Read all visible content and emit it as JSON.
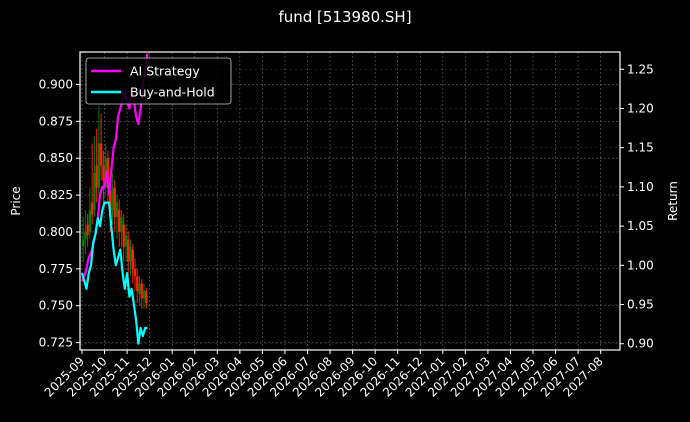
{
  "chart_data": {
    "type": "line",
    "title": "fund [513980.SH]",
    "xlabel": "",
    "ylabel_left": "Price",
    "ylabel_right": "Return",
    "ylim_left": [
      0.72,
      0.922
    ],
    "ylim_right": [
      0.892,
      1.272
    ],
    "left_ticks": [
      "0.725",
      "0.750",
      "0.775",
      "0.800",
      "0.825",
      "0.850",
      "0.875",
      "0.900"
    ],
    "right_ticks": [
      "0.90",
      "0.95",
      "1.00",
      "1.05",
      "1.10",
      "1.15",
      "1.20",
      "1.25"
    ],
    "x_tick_labels": [
      "2025-09",
      "2025-10",
      "2025-11",
      "2025-12",
      "2026-01",
      "2026-02",
      "2026-03",
      "2026-04",
      "2026-05",
      "2026-06",
      "2026-07",
      "2026-08",
      "2026-09",
      "2026-10",
      "2026-11",
      "2026-12",
      "2027-01",
      "2027-02",
      "2027-03",
      "2027-04",
      "2027-05",
      "2027-06",
      "2027-07",
      "2027-08"
    ],
    "grid": true,
    "legend_position": "upper left",
    "series": [
      {
        "name": "AI Strategy",
        "color": "#ff00ff",
        "axis": "right",
        "points": [
          [
            0.0,
            0.98
          ],
          [
            0.15,
            0.99
          ],
          [
            0.3,
            1.01
          ],
          [
            0.45,
            1.02
          ],
          [
            0.6,
            1.04
          ],
          [
            0.7,
            1.06
          ],
          [
            0.8,
            1.09
          ],
          [
            0.9,
            1.1
          ],
          [
            1.0,
            1.1
          ],
          [
            1.1,
            1.12
          ],
          [
            1.2,
            1.09
          ],
          [
            1.3,
            1.12
          ],
          [
            1.4,
            1.15
          ],
          [
            1.5,
            1.16
          ],
          [
            1.6,
            1.19
          ],
          [
            1.7,
            1.2
          ],
          [
            1.8,
            1.21
          ],
          [
            1.9,
            1.22
          ],
          [
            2.0,
            1.21
          ],
          [
            2.1,
            1.2
          ],
          [
            2.2,
            1.22
          ],
          [
            2.3,
            1.21
          ],
          [
            2.4,
            1.19
          ],
          [
            2.5,
            1.18
          ],
          [
            2.6,
            1.2
          ],
          [
            2.7,
            1.23
          ],
          [
            2.8,
            1.25
          ],
          [
            2.9,
            1.27
          ]
        ]
      },
      {
        "name": "Buy-and-Hold",
        "color": "#00ffff",
        "axis": "right",
        "points": [
          [
            0.0,
            0.99
          ],
          [
            0.1,
            0.98
          ],
          [
            0.2,
            0.97
          ],
          [
            0.3,
            0.99
          ],
          [
            0.4,
            1.0
          ],
          [
            0.5,
            1.03
          ],
          [
            0.6,
            1.04
          ],
          [
            0.7,
            1.06
          ],
          [
            0.8,
            1.05
          ],
          [
            0.9,
            1.07
          ],
          [
            1.0,
            1.08
          ],
          [
            1.1,
            1.08
          ],
          [
            1.2,
            1.08
          ],
          [
            1.3,
            1.05
          ],
          [
            1.4,
            1.02
          ],
          [
            1.5,
            1.0
          ],
          [
            1.6,
            1.01
          ],
          [
            1.7,
            1.02
          ],
          [
            1.8,
            0.99
          ],
          [
            1.9,
            0.97
          ],
          [
            2.0,
            0.99
          ],
          [
            2.1,
            0.96
          ],
          [
            2.2,
            0.97
          ],
          [
            2.3,
            0.95
          ],
          [
            2.4,
            0.93
          ],
          [
            2.5,
            0.9
          ],
          [
            2.6,
            0.92
          ],
          [
            2.7,
            0.91
          ],
          [
            2.8,
            0.92
          ],
          [
            2.9,
            0.92
          ]
        ]
      }
    ],
    "candles": {
      "axis": "left",
      "up_color": "#008000",
      "down_color": "#ff2200",
      "items": [
        [
          0.05,
          0.79,
          0.795,
          0.78,
          0.81,
          "up"
        ],
        [
          0.15,
          0.795,
          0.8,
          0.785,
          0.815,
          "up"
        ],
        [
          0.25,
          0.805,
          0.798,
          0.79,
          0.812,
          "down"
        ],
        [
          0.35,
          0.8,
          0.815,
          0.795,
          0.83,
          "up"
        ],
        [
          0.45,
          0.82,
          0.812,
          0.805,
          0.86,
          "down"
        ],
        [
          0.55,
          0.815,
          0.84,
          0.81,
          0.865,
          "up"
        ],
        [
          0.65,
          0.845,
          0.83,
          0.82,
          0.87,
          "down"
        ],
        [
          0.75,
          0.83,
          0.86,
          0.825,
          0.885,
          "up"
        ],
        [
          0.85,
          0.86,
          0.845,
          0.835,
          0.88,
          "down"
        ],
        [
          0.95,
          0.845,
          0.835,
          0.82,
          0.855,
          "down"
        ],
        [
          1.05,
          0.83,
          0.85,
          0.825,
          0.86,
          "up"
        ],
        [
          1.15,
          0.85,
          0.83,
          0.82,
          0.855,
          "down"
        ],
        [
          1.25,
          0.828,
          0.815,
          0.8,
          0.835,
          "down"
        ],
        [
          1.35,
          0.815,
          0.83,
          0.805,
          0.84,
          "up"
        ],
        [
          1.45,
          0.83,
          0.81,
          0.8,
          0.835,
          "down"
        ],
        [
          1.55,
          0.81,
          0.82,
          0.795,
          0.825,
          "up"
        ],
        [
          1.65,
          0.815,
          0.8,
          0.79,
          0.822,
          "down"
        ],
        [
          1.75,
          0.8,
          0.81,
          0.79,
          0.815,
          "up"
        ],
        [
          1.85,
          0.805,
          0.79,
          0.78,
          0.812,
          "down"
        ],
        [
          1.95,
          0.79,
          0.798,
          0.78,
          0.805,
          "up"
        ],
        [
          2.05,
          0.795,
          0.78,
          0.77,
          0.8,
          "down"
        ],
        [
          2.15,
          0.78,
          0.79,
          0.77,
          0.795,
          "up"
        ],
        [
          2.25,
          0.788,
          0.775,
          0.765,
          0.792,
          "down"
        ],
        [
          2.35,
          0.775,
          0.77,
          0.76,
          0.782,
          "down"
        ],
        [
          2.45,
          0.77,
          0.76,
          0.752,
          0.775,
          "down"
        ],
        [
          2.55,
          0.758,
          0.765,
          0.75,
          0.77,
          "up"
        ],
        [
          2.65,
          0.765,
          0.755,
          0.748,
          0.768,
          "down"
        ],
        [
          2.75,
          0.755,
          0.76,
          0.748,
          0.765,
          "up"
        ],
        [
          2.85,
          0.76,
          0.752,
          0.748,
          0.762,
          "down"
        ]
      ]
    }
  },
  "legend": {
    "items": [
      {
        "label": "AI Strategy",
        "color": "#ff00ff"
      },
      {
        "label": "Buy-and-Hold",
        "color": "#00ffff"
      }
    ]
  },
  "axes": {
    "left_label": "Price",
    "right_label": "Return"
  },
  "colors": {
    "background": "#000000",
    "axis": "#ffffff",
    "grid": "#555555"
  }
}
